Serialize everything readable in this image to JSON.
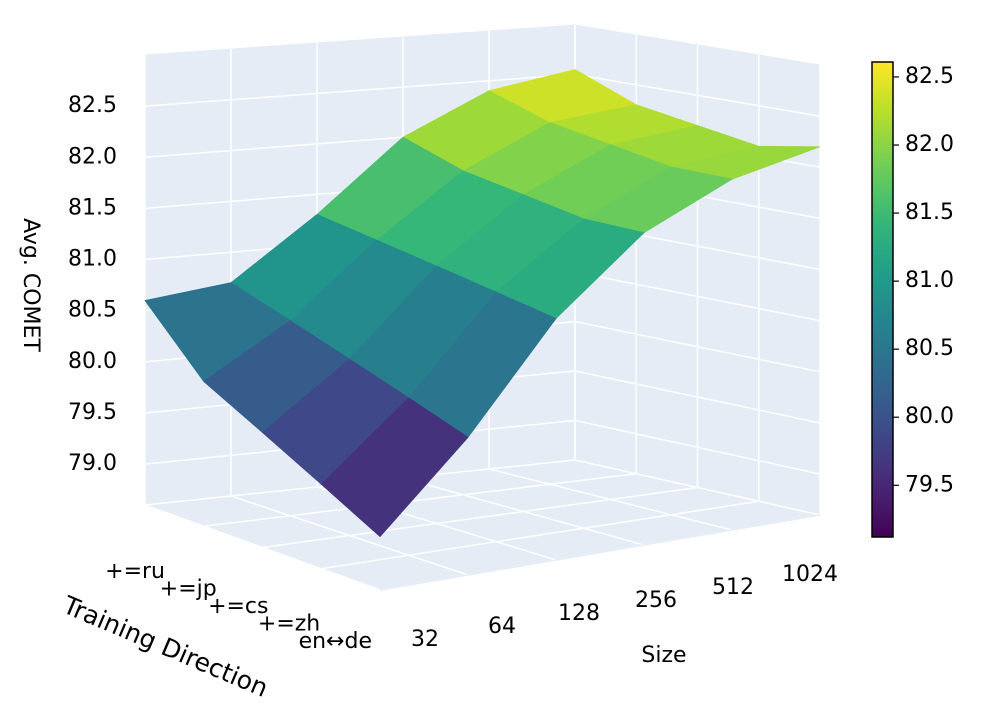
{
  "chart_data": {
    "type": "surface",
    "xlabel": "Size",
    "ylabel": "Training Direction",
    "zlabel": "Avg. COMET",
    "x": [
      "32",
      "64",
      "128",
      "256",
      "512",
      "1024"
    ],
    "y": [
      "en↔de",
      "+=zh",
      "+=cs",
      "+=jp",
      "+=ru"
    ],
    "z": [
      [
        79.1,
        79.9,
        80.9,
        81.6,
        82.0,
        82.2
      ],
      [
        79.4,
        80.1,
        81.0,
        81.6,
        82.0,
        82.1
      ],
      [
        79.7,
        80.3,
        81.1,
        81.7,
        82.1,
        82.2
      ],
      [
        80.0,
        80.5,
        81.2,
        81.8,
        82.2,
        82.3
      ],
      [
        80.6,
        80.7,
        81.3,
        82.0,
        82.4,
        82.55
      ]
    ],
    "zlim": [
      78.6,
      83.0
    ],
    "zticks": [
      {
        "value": 79,
        "label": "79.0"
      },
      79.5,
      {
        "value": 80,
        "label": "80.0"
      },
      80.5,
      {
        "value": 81,
        "label": "81.0"
      },
      81.5,
      {
        "value": 82,
        "label": "82.0"
      },
      82.5
    ],
    "colormap": "viridis",
    "colorbar": {
      "clim": [
        79.12,
        82.61
      ],
      "ticks": [
        79.5,
        {
          "value": 80,
          "label": "80.0"
        },
        80.5,
        {
          "value": 81,
          "label": "81.0"
        },
        81.5,
        {
          "value": 82,
          "label": "82.0"
        },
        82.5
      ]
    },
    "grid": true
  }
}
